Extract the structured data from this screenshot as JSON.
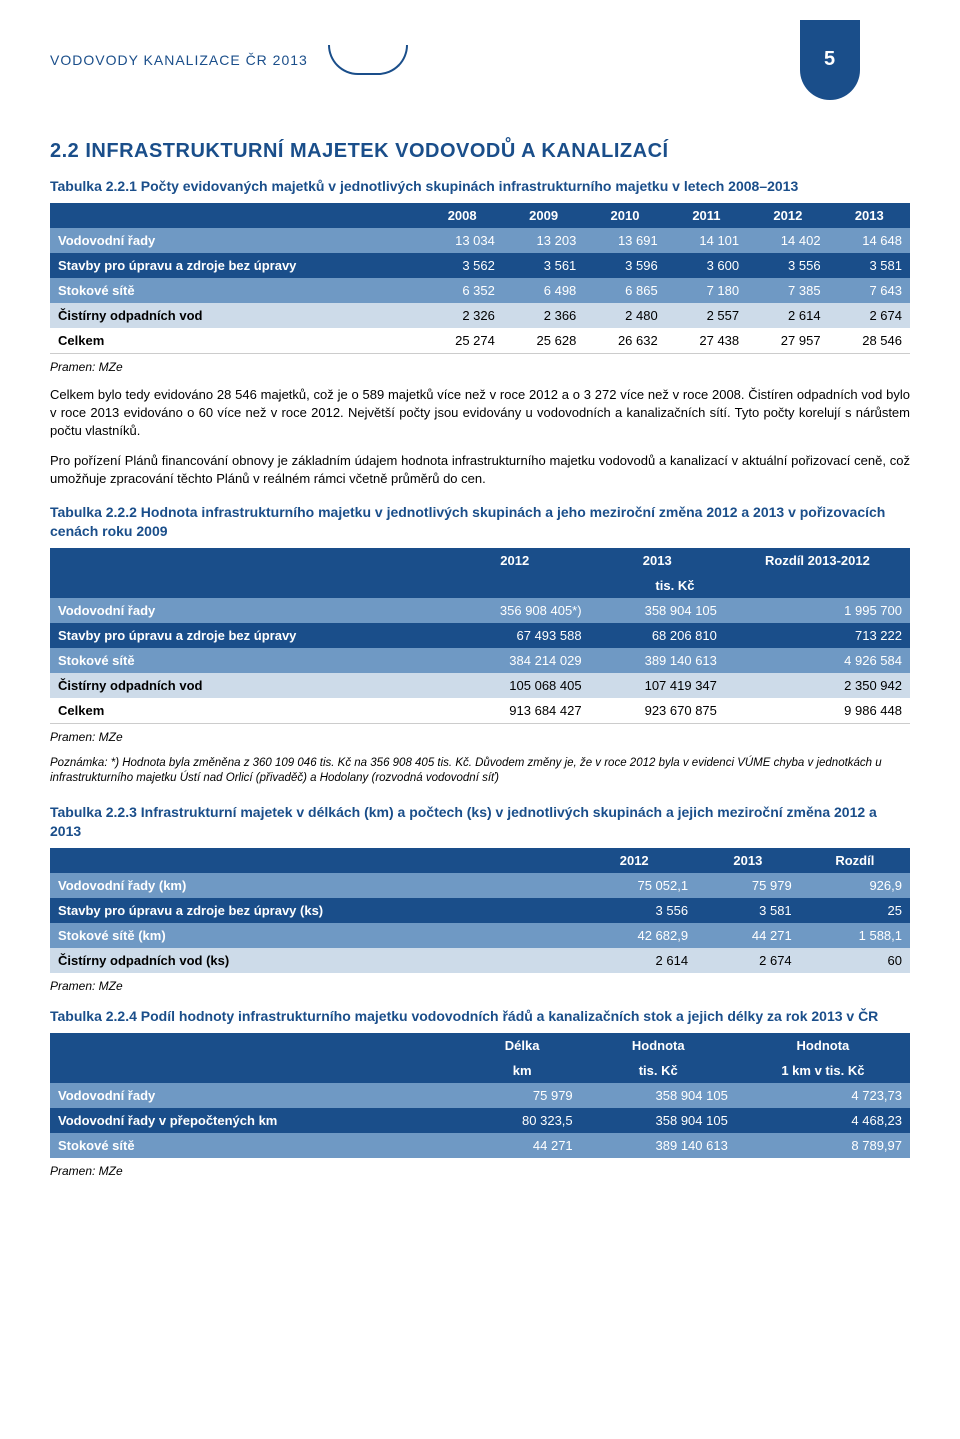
{
  "page_number": "5",
  "header_title": "VODOVODY KANALIZACE ČR 2013",
  "section_heading": "2.2 INFRASTRUKTURNÍ MAJETEK VODOVODŮ A KANALIZACÍ",
  "table221": {
    "caption": "Tabulka 2.2.1 Počty evidovaných majetků v jednotlivých skupinách infrastrukturního majetku v letech 2008–2013",
    "columns": [
      "",
      "2008",
      "2009",
      "2010",
      "2011",
      "2012",
      "2013"
    ],
    "rows": [
      {
        "label": "Vodovodní řady",
        "cells": [
          "13 034",
          "13 203",
          "13 691",
          "14 101",
          "14 402",
          "14 648"
        ],
        "band": "mid"
      },
      {
        "label": "Stavby pro úpravu a zdroje bez úpravy",
        "cells": [
          "3 562",
          "3 561",
          "3 596",
          "3 600",
          "3 556",
          "3 581"
        ],
        "band": "dark"
      },
      {
        "label": "Stokové sítě",
        "cells": [
          "6 352",
          "6 498",
          "6 865",
          "7 180",
          "7 385",
          "7 643"
        ],
        "band": "mid"
      },
      {
        "label": "Čistírny odpadních vod",
        "cells": [
          "2 326",
          "2 366",
          "2 480",
          "2 557",
          "2 614",
          "2 674"
        ],
        "band": "light"
      },
      {
        "label": "Celkem",
        "cells": [
          "25 274",
          "25 628",
          "26 632",
          "27 438",
          "27 957",
          "28 546"
        ],
        "band": "white"
      }
    ],
    "source": "Pramen: MZe"
  },
  "para1": "Celkem bylo tedy evidováno 28 546 majetků, což je o 589 majetků více než v roce 2012 a o 3 272 více než v roce 2008. Čistíren odpadních vod bylo v roce 2013 evidováno o 60 více než v roce 2012. Největší počty jsou evidovány u vodovodních a kanalizačních sítí. Tyto počty korelují s nárůstem počtu vlastníků.",
  "para2": "Pro pořízení Plánů financování obnovy je základním údajem hodnota infrastrukturního majetku vodovodů a kanalizací v aktuální pořizovací ceně, což umožňuje zpracování těchto Plánů v reálném rámci včetně průměrů do cen.",
  "table222": {
    "caption": "Tabulka 2.2.2 Hodnota infrastrukturního majetku v jednotlivých skupinách a jeho meziroční změna 2012 a 2013 v pořizovacích cenách roku 2009",
    "head_row1": [
      "",
      "2012",
      "2013",
      "Rozdíl 2013-2012"
    ],
    "head_row2_unit": "tis. Kč",
    "rows": [
      {
        "label": "Vodovodní řady",
        "cells": [
          "356 908 405*)",
          "358 904 105",
          "1 995 700"
        ],
        "band": "mid"
      },
      {
        "label": "Stavby pro úpravu a zdroje bez úpravy",
        "cells": [
          "67 493 588",
          "68 206 810",
          "713 222"
        ],
        "band": "dark"
      },
      {
        "label": "Stokové sítě",
        "cells": [
          "384 214 029",
          "389 140 613",
          "4 926 584"
        ],
        "band": "mid"
      },
      {
        "label": "Čistírny odpadních vod",
        "cells": [
          "105 068 405",
          "107 419 347",
          "2 350 942"
        ],
        "band": "light"
      },
      {
        "label": "Celkem",
        "cells": [
          "913 684 427",
          "923 670 875",
          "9 986 448"
        ],
        "band": "white"
      }
    ],
    "source": "Pramen: MZe",
    "note": "Poznámka: *) Hodnota byla změněna z 360 109 046 tis. Kč na 356 908 405 tis. Kč. Důvodem změny je, že v roce 2012 byla v evidenci VÚME chyba v jednotkách u infrastrukturního majetku Ústí nad Orlicí (přivaděč) a Hodolany (rozvodná vodovodní síť)"
  },
  "table223": {
    "caption": "Tabulka 2.2.3 Infrastrukturní majetek v délkách (km) a počtech (ks) v jednotlivých skupinách a jejich meziroční změna 2012 a 2013",
    "columns": [
      "",
      "2012",
      "2013",
      "Rozdíl"
    ],
    "rows": [
      {
        "label": "Vodovodní řady (km)",
        "cells": [
          "75 052,1",
          "75 979",
          "926,9"
        ],
        "band": "mid"
      },
      {
        "label": "Stavby pro úpravu a zdroje bez úpravy (ks)",
        "cells": [
          "3 556",
          "3 581",
          "25"
        ],
        "band": "dark"
      },
      {
        "label": "Stokové sítě (km)",
        "cells": [
          "42 682,9",
          "44 271",
          "1 588,1"
        ],
        "band": "mid"
      },
      {
        "label": "Čistírny odpadních vod (ks)",
        "cells": [
          "2 614",
          "2 674",
          "60"
        ],
        "band": "light"
      }
    ],
    "source": "Pramen: MZe"
  },
  "table224": {
    "caption": "Tabulka 2.2.4 Podíl hodnoty infrastrukturního majetku vodovodních řádů a kanalizačních stok a jejich délky za rok 2013 v ČR",
    "head_row1": [
      "",
      "Délka",
      "Hodnota",
      "Hodnota"
    ],
    "head_row2": [
      "",
      "km",
      "tis. Kč",
      "1 km v tis. Kč"
    ],
    "rows": [
      {
        "label": "Vodovodní řady",
        "cells": [
          "75 979",
          "358 904 105",
          "4 723,73"
        ],
        "band": "mid"
      },
      {
        "label": "Vodovodní řady v přepočtených km",
        "cells": [
          "80 323,5",
          "358 904 105",
          "4 468,23"
        ],
        "band": "dark"
      },
      {
        "label": "Stokové sítě",
        "cells": [
          "44 271",
          "389 140 613",
          "8 789,97"
        ],
        "band": "mid"
      }
    ],
    "source": "Pramen: MZe"
  },
  "style": {
    "brand_color": "#1a4e8a",
    "band_mid": "#6f99c4",
    "band_light": "#cddbe9",
    "table_font_size": 13,
    "caption_font_size": 14,
    "body_font_size": 13
  }
}
